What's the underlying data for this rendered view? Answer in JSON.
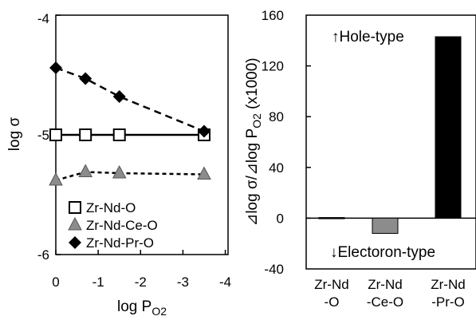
{
  "chart_data": [
    {
      "type": "scatter",
      "xlabel": "log P",
      "xlabel_sub": "O2",
      "ylabel": "log σ",
      "xlim": [
        0,
        -4
      ],
      "ylim": [
        -6,
        -4
      ],
      "x_ticks": [
        0,
        -1,
        -2,
        -3,
        -4
      ],
      "x_tick_labels": [
        "0",
        "-1",
        "-2",
        "-3",
        "-4"
      ],
      "y_ticks": [
        -4,
        -5,
        -6
      ],
      "y_tick_labels": [
        "-4",
        "-5",
        "-6"
      ],
      "grid": false,
      "legend_position": "bottom-left",
      "series": [
        {
          "name": "Zr-Nd-O",
          "marker": "open-square",
          "line": "solid",
          "color": "#000000",
          "x": [
            0,
            -0.7,
            -1.5,
            -3.5
          ],
          "y": [
            -5.0,
            -5.0,
            -5.0,
            -5.0
          ]
        },
        {
          "name": "Zr-Nd-Ce-O",
          "marker": "gray-triangle",
          "line": "dashed",
          "color": "#8c8c8c",
          "x": [
            0,
            -0.7,
            -1.5,
            -3.5
          ],
          "y": [
            -5.38,
            -5.31,
            -5.32,
            -5.33
          ]
        },
        {
          "name": "Zr-Nd-Pr-O",
          "marker": "black-diamond",
          "line": "dashed",
          "color": "#000000",
          "x": [
            0,
            -0.7,
            -1.5,
            -3.5
          ],
          "y": [
            -4.44,
            -4.53,
            -4.68,
            -4.97
          ]
        }
      ]
    },
    {
      "type": "bar",
      "ylabel": "⊿log σ/⊿log P",
      "ylabel_sub": "O2",
      "ylabel_suffix": " (x1000)",
      "ylim": [
        -40,
        160
      ],
      "y_ticks": [
        -40,
        0,
        40,
        80,
        120,
        160
      ],
      "y_tick_labels": [
        "-40",
        "0",
        "40",
        "80",
        "120",
        "160"
      ],
      "grid": false,
      "categories": [
        [
          "Zr-Nd",
          "-O"
        ],
        [
          "Zr-Nd",
          "-Ce-O"
        ],
        [
          "Zr-Nd",
          "-Pr-O"
        ]
      ],
      "values": [
        0.5,
        -12,
        143
      ],
      "colors": [
        "#000000",
        "#8c8c8c",
        "#000000"
      ],
      "annotations": {
        "top": "↑Hole-type",
        "bottom": "↓Electoron-type"
      }
    }
  ]
}
